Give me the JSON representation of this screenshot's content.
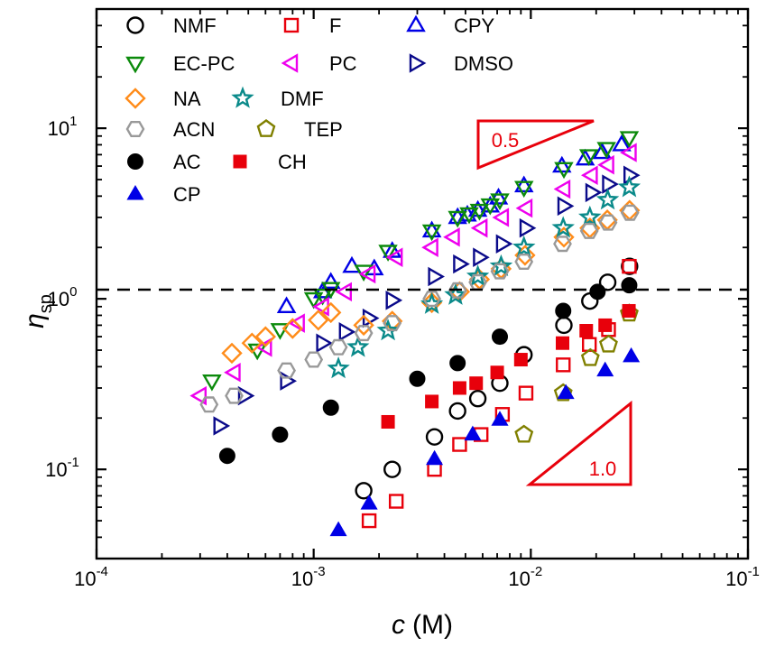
{
  "chart_data": {
    "type": "scatter",
    "x_scale": "log",
    "y_scale": "log",
    "xlabel_var": "c",
    "xlabel_unit": "(M)",
    "ylabel_var": "η",
    "ylabel_sub": "sp",
    "xlim": [
      0.0001,
      0.1
    ],
    "ylim": [
      0.03,
      50
    ],
    "x_ticks": [
      {
        "value": 0.0001,
        "base": "10",
        "exp": "-4"
      },
      {
        "value": 0.001,
        "base": "10",
        "exp": "-3"
      },
      {
        "value": 0.01,
        "base": "10",
        "exp": "-2"
      },
      {
        "value": 0.1,
        "base": "10",
        "exp": "-1"
      }
    ],
    "y_ticks": [
      {
        "value": 0.1,
        "base": "10",
        "exp": "-1"
      },
      {
        "value": 1,
        "base": "10",
        "exp": "0"
      },
      {
        "value": 10,
        "base": "10",
        "exp": "1"
      }
    ],
    "reference_line": {
      "y": 1,
      "style": "dashed"
    },
    "slope_annotations": [
      {
        "label": "0.5",
        "color": "#e8000b"
      },
      {
        "label": "1.0",
        "color": "#e8000b"
      }
    ],
    "grid": false,
    "legend_position": "top-left",
    "series": [
      {
        "name": "NMF",
        "marker": "circle-open",
        "color": "#000000",
        "x": [
          0.0017,
          0.0023,
          0.0036,
          0.0046,
          0.0057,
          0.0072,
          0.0093,
          0.0142,
          0.0187,
          0.0226,
          0.0285
        ],
        "y": [
          0.075,
          0.1,
          0.155,
          0.22,
          0.26,
          0.32,
          0.47,
          0.7,
          0.97,
          1.25,
          1.55
        ]
      },
      {
        "name": "F",
        "marker": "square-open",
        "color": "#e8000b",
        "x": [
          0.0018,
          0.0024,
          0.0036,
          0.0047,
          0.0059,
          0.0074,
          0.0095,
          0.0141,
          0.0186,
          0.0228,
          0.0284
        ],
        "y": [
          0.05,
          0.065,
          0.1,
          0.14,
          0.16,
          0.21,
          0.28,
          0.41,
          0.54,
          0.66,
          1.55
        ]
      },
      {
        "name": "CPY",
        "marker": "triangle-up-open",
        "color": "#0000e6",
        "x": [
          0.00075,
          0.0011,
          0.0012,
          0.0015,
          0.0019,
          0.0023,
          0.0035,
          0.0046,
          0.0051,
          0.0057,
          0.0065,
          0.0071,
          0.0093,
          0.0139,
          0.0178,
          0.0213,
          0.0262
        ],
        "y": [
          0.9,
          1.1,
          1.25,
          1.55,
          1.5,
          1.9,
          2.5,
          3.0,
          3.1,
          3.3,
          3.5,
          3.9,
          4.6,
          6.0,
          6.6,
          7.2,
          8.0
        ]
      },
      {
        "name": "EC-PC",
        "marker": "triangle-down-open",
        "color": "#0b8a0b",
        "x": [
          0.00034,
          0.00055,
          0.0007,
          0.001,
          0.0011,
          0.0012,
          0.0017,
          0.0022,
          0.0035,
          0.0046,
          0.0052,
          0.0058,
          0.0065,
          0.0072,
          0.0093,
          0.0142,
          0.0185,
          0.0223,
          0.0284
        ],
        "y": [
          0.33,
          0.5,
          0.66,
          1.0,
          1.05,
          1.15,
          1.45,
          1.9,
          2.5,
          3.0,
          3.15,
          3.3,
          3.55,
          3.8,
          4.5,
          5.8,
          6.9,
          7.6,
          8.8
        ]
      },
      {
        "name": "PC",
        "marker": "triangle-left-open",
        "color": "#ee00ee",
        "x": [
          0.0003,
          0.00043,
          0.0006,
          0.00085,
          0.0011,
          0.0014,
          0.0018,
          0.0024,
          0.0035,
          0.0044,
          0.0059,
          0.0074,
          0.0095,
          0.0142,
          0.019,
          0.0226,
          0.0287
        ],
        "y": [
          0.27,
          0.37,
          0.52,
          0.72,
          0.9,
          1.1,
          1.4,
          1.75,
          2.0,
          2.3,
          2.6,
          3.0,
          3.4,
          4.4,
          5.3,
          6.1,
          7.2
        ]
      },
      {
        "name": "DMSO",
        "marker": "triangle-right-open",
        "color": "#0a0a8a",
        "x": [
          0.00037,
          0.00048,
          0.00075,
          0.0011,
          0.0014,
          0.0018,
          0.0023,
          0.0036,
          0.0047,
          0.0058,
          0.0074,
          0.0095,
          0.0142,
          0.0191,
          0.0228,
          0.0286
        ],
        "y": [
          0.18,
          0.27,
          0.33,
          0.55,
          0.64,
          0.77,
          0.98,
          1.35,
          1.6,
          1.75,
          2.1,
          2.6,
          3.5,
          4.2,
          4.7,
          5.3
        ]
      },
      {
        "name": "NA",
        "marker": "diamond-open",
        "color": "#ff8c1a",
        "x": [
          0.00042,
          0.00052,
          0.0006,
          0.0008,
          0.00105,
          0.0012,
          0.0017,
          0.0023,
          0.0035,
          0.0047,
          0.0058,
          0.0073,
          0.0094,
          0.0142,
          0.0187,
          0.0225,
          0.0285
        ],
        "y": [
          0.48,
          0.55,
          0.6,
          0.67,
          0.75,
          0.83,
          0.7,
          0.74,
          0.95,
          1.1,
          1.3,
          1.5,
          1.8,
          2.3,
          2.6,
          2.9,
          3.3
        ]
      },
      {
        "name": "DMF",
        "marker": "star-open",
        "color": "#0a8a8a",
        "x": [
          0.0013,
          0.0016,
          0.0022,
          0.0035,
          0.0045,
          0.0057,
          0.0073,
          0.0093,
          0.0141,
          0.0187,
          0.0226,
          0.0284
        ],
        "y": [
          0.39,
          0.52,
          0.65,
          0.93,
          1.05,
          1.35,
          1.55,
          2.0,
          2.6,
          3.0,
          3.8,
          4.5
        ]
      },
      {
        "name": "ACN",
        "marker": "hexagon-open",
        "color": "#999999",
        "x": [
          0.00033,
          0.00043,
          0.00075,
          0.001,
          0.0013,
          0.0017,
          0.0023,
          0.0035,
          0.0046,
          0.0057,
          0.0072,
          0.0093,
          0.014,
          0.0186,
          0.0227,
          0.0286
        ],
        "y": [
          0.24,
          0.27,
          0.38,
          0.44,
          0.52,
          0.63,
          0.72,
          1.0,
          1.12,
          1.25,
          1.45,
          1.65,
          2.1,
          2.5,
          2.8,
          3.2
        ]
      },
      {
        "name": "TEP",
        "marker": "pentagon-open",
        "color": "#808000",
        "x": [
          0.0093,
          0.0141,
          0.0188,
          0.0228,
          0.0284
        ],
        "y": [
          0.16,
          0.28,
          0.45,
          0.54,
          0.82
        ]
      },
      {
        "name": "AC",
        "marker": "circle-filled",
        "color": "#000000",
        "x": [
          0.0004,
          0.0007,
          0.0012,
          0.003,
          0.0046,
          0.0072,
          0.0141,
          0.0203,
          0.0284
        ],
        "y": [
          0.12,
          0.16,
          0.23,
          0.34,
          0.42,
          0.6,
          0.85,
          1.1,
          1.2
        ]
      },
      {
        "name": "CH",
        "marker": "square-filled",
        "color": "#e8000b",
        "x": [
          0.0022,
          0.0035,
          0.0047,
          0.0056,
          0.007,
          0.009,
          0.014,
          0.018,
          0.022,
          0.0283
        ],
        "y": [
          0.19,
          0.25,
          0.3,
          0.32,
          0.37,
          0.44,
          0.55,
          0.65,
          0.7,
          0.85
        ]
      },
      {
        "name": "CP",
        "marker": "triangle-up-filled",
        "color": "#0000e6",
        "x": [
          0.0013,
          0.0018,
          0.0036,
          0.0054,
          0.0072,
          0.0145,
          0.022,
          0.029
        ],
        "y": [
          0.044,
          0.063,
          0.115,
          0.16,
          0.195,
          0.28,
          0.38,
          0.46
        ]
      }
    ]
  }
}
